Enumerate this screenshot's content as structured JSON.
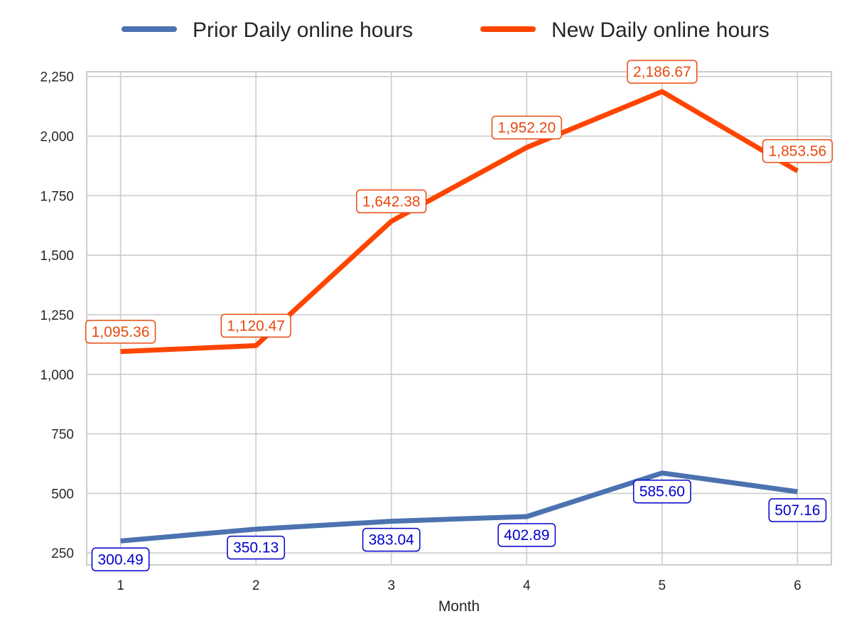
{
  "chart_data": {
    "type": "line",
    "title": "",
    "xlabel": "Month",
    "ylabel": "",
    "x": [
      1,
      2,
      3,
      4,
      5,
      6
    ],
    "xlim": [
      0.75,
      6.25
    ],
    "ylim": [
      200,
      2270
    ],
    "yticks": [
      250,
      500,
      750,
      1000,
      1250,
      1500,
      1750,
      2000,
      2250
    ],
    "ytick_labels": [
      "250",
      "500",
      "750",
      "1,000",
      "1,250",
      "1,500",
      "1,750",
      "2,000",
      "2,250"
    ],
    "xtick_labels": [
      "1",
      "2",
      "3",
      "4",
      "5",
      "6"
    ],
    "grid": true,
    "legend_position": "top-center, outside plot",
    "series": [
      {
        "name": "Prior Daily online hours",
        "color": "#4c72b0",
        "label_color": "#0000cc",
        "label_position": "below",
        "values": [
          300.49,
          350.13,
          383.04,
          402.89,
          585.6,
          507.16
        ],
        "labels": [
          "300.49",
          "350.13",
          "383.04",
          "402.89",
          "585.60",
          "507.16"
        ]
      },
      {
        "name": "New Daily online hours",
        "color": "#ff4500",
        "label_color": "#e8490f",
        "label_position": "above",
        "values": [
          1095.36,
          1120.47,
          1642.38,
          1952.2,
          2186.67,
          1853.56
        ],
        "labels": [
          "1,095.36",
          "1,120.47",
          "1,642.38",
          "1,952.20",
          "2,186.67",
          "1,853.56"
        ]
      }
    ]
  }
}
